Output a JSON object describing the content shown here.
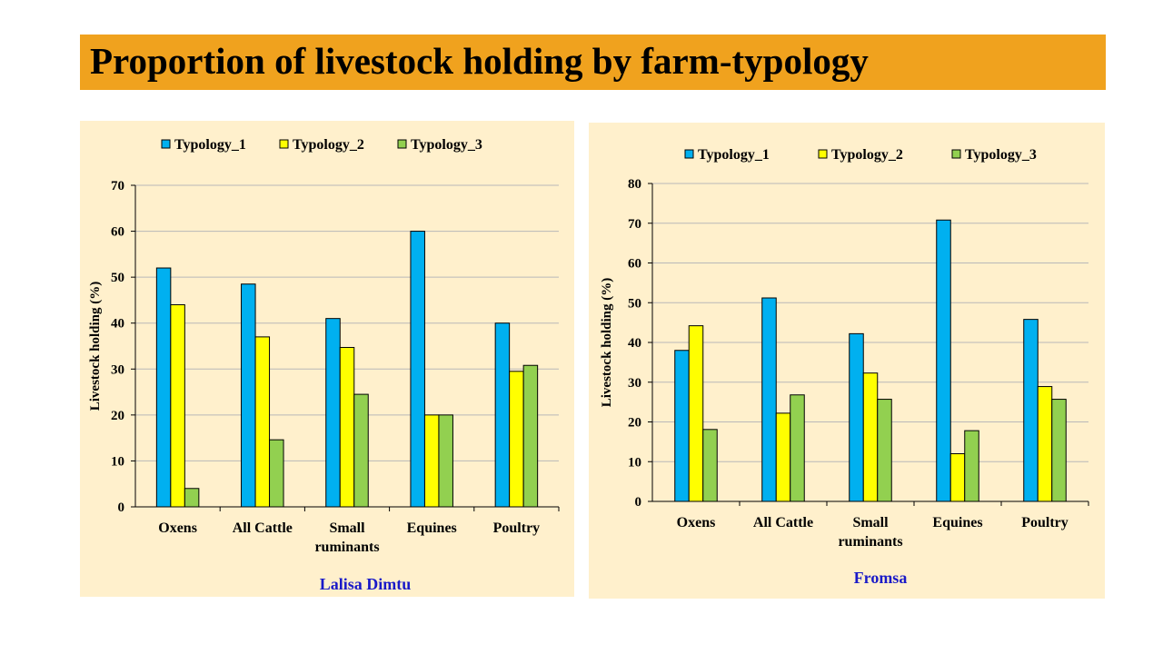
{
  "slide": {
    "title": "Proportion of livestock holding by farm-typology"
  },
  "colors": {
    "title_bar": "#F0A21E",
    "panel_background": "#FFF0CC",
    "caption": "#1A1AC8"
  },
  "chart_data": [
    {
      "type": "bar",
      "caption": "Lalisa Dimtu",
      "ylabel": "Livestock holding (%)",
      "ylim": [
        0,
        70
      ],
      "yticks": [
        0,
        10,
        20,
        30,
        40,
        50,
        60,
        70
      ],
      "grid": true,
      "legend": "top",
      "categories": [
        "Oxens",
        "All Cattle",
        "Small ruminants",
        "Equines",
        "Poultry"
      ],
      "series": [
        {
          "name": "Typology_1",
          "color": "#00B0F0",
          "values": [
            52,
            48.5,
            41,
            60,
            40
          ]
        },
        {
          "name": "Typology_2",
          "color": "#FFFF00",
          "values": [
            44,
            37,
            34.7,
            20,
            29.5
          ]
        },
        {
          "name": "Typology_3",
          "color": "#92D050",
          "values": [
            4,
            14.6,
            24.5,
            20,
            30.8
          ]
        }
      ]
    },
    {
      "type": "bar",
      "caption": "Fromsa",
      "ylabel": "Livestock holding (%)",
      "ylim": [
        0,
        80
      ],
      "yticks": [
        0,
        10,
        20,
        30,
        40,
        50,
        60,
        70,
        80
      ],
      "grid": true,
      "legend": "top",
      "categories": [
        "Oxens",
        "All Cattle",
        "Small ruminants",
        "Equines",
        "Poultry"
      ],
      "series": [
        {
          "name": "Typology_1",
          "color": "#00B0F0",
          "values": [
            38,
            51.2,
            42.2,
            70.8,
            45.8
          ]
        },
        {
          "name": "Typology_2",
          "color": "#FFFF00",
          "values": [
            44.2,
            22.2,
            32.3,
            12,
            28.9
          ]
        },
        {
          "name": "Typology_3",
          "color": "#92D050",
          "values": [
            18.1,
            26.8,
            25.7,
            17.8,
            25.7
          ]
        }
      ]
    }
  ]
}
